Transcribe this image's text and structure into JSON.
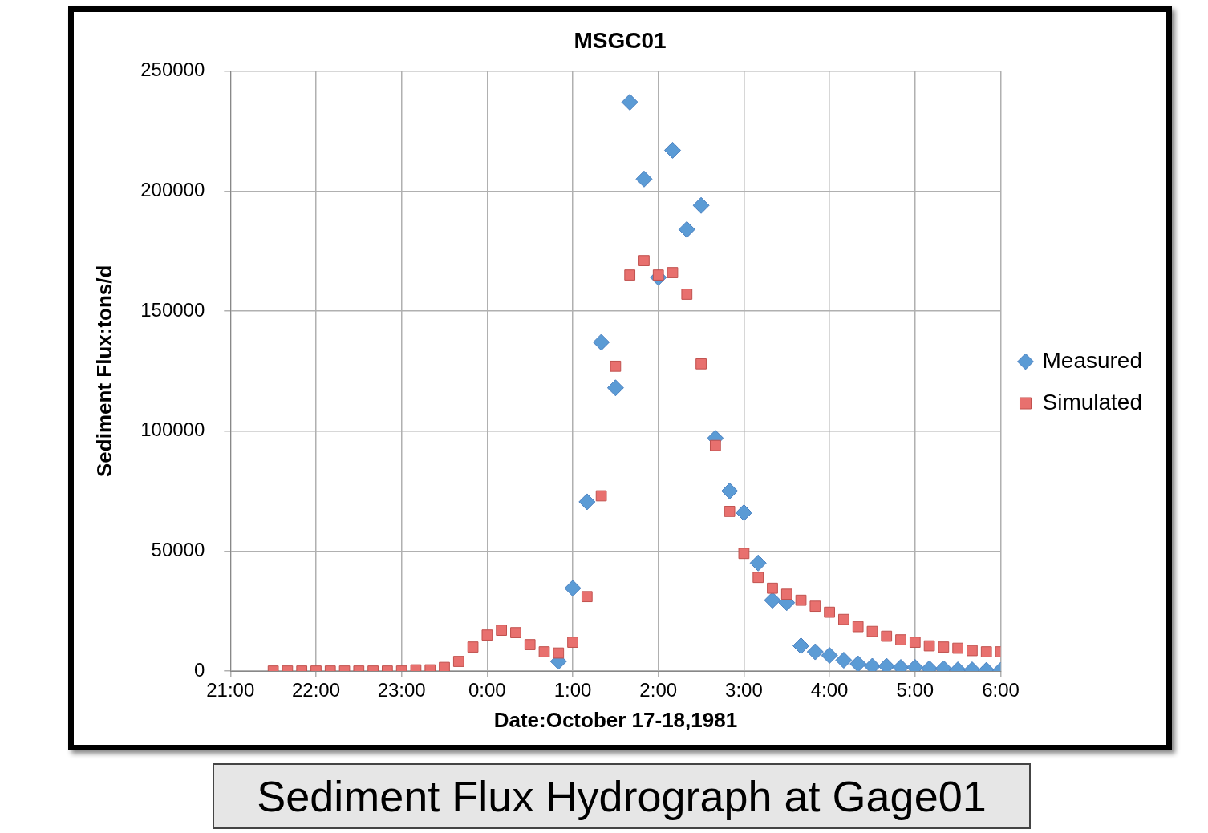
{
  "chart_data": {
    "type": "scatter",
    "title": "MSGC01",
    "xlabel": "Date:October 17-18,1981",
    "ylabel": "Sediment Flux:tons/d",
    "annotations": [
      "Sediment Flux Hydrograph at Gage01"
    ],
    "x": [
      "1981-10-17T21:30",
      "1981-10-17T21:40",
      "1981-10-17T21:50",
      "1981-10-17T22:00",
      "1981-10-17T22:10",
      "1981-10-17T22:20",
      "1981-10-17T22:30",
      "1981-10-17T22:40",
      "1981-10-17T22:50",
      "1981-10-17T23:00",
      "1981-10-17T23:10",
      "1981-10-17T23:20",
      "1981-10-17T23:30",
      "1981-10-17T23:40",
      "1981-10-17T23:50",
      "1981-10-18T00:00",
      "1981-10-18T00:10",
      "1981-10-18T00:20",
      "1981-10-18T00:30",
      "1981-10-18T00:40",
      "1981-10-18T00:50",
      "1981-10-18T01:00",
      "1981-10-18T01:10",
      "1981-10-18T01:20",
      "1981-10-18T01:30",
      "1981-10-18T01:40",
      "1981-10-18T01:50",
      "1981-10-18T02:00",
      "1981-10-18T02:10",
      "1981-10-18T02:20",
      "1981-10-18T02:30",
      "1981-10-18T02:40",
      "1981-10-18T02:50",
      "1981-10-18T03:00",
      "1981-10-18T03:10",
      "1981-10-18T03:20",
      "1981-10-18T03:30",
      "1981-10-18T03:40",
      "1981-10-18T03:50",
      "1981-10-18T04:00",
      "1981-10-18T04:10",
      "1981-10-18T04:20",
      "1981-10-18T04:30",
      "1981-10-18T04:40",
      "1981-10-18T04:50",
      "1981-10-18T05:00",
      "1981-10-18T05:10",
      "1981-10-18T05:20",
      "1981-10-18T05:30",
      "1981-10-18T05:40",
      "1981-10-18T05:50",
      "1981-10-18T06:00"
    ],
    "series": [
      {
        "name": "Measured",
        "color": "#5b9bd5",
        "marker": "diamond",
        "values": [
          null,
          null,
          null,
          null,
          null,
          null,
          null,
          null,
          null,
          null,
          null,
          null,
          null,
          null,
          null,
          null,
          null,
          null,
          null,
          null,
          4000,
          34500,
          70500,
          137000,
          118000,
          237000,
          205000,
          164000,
          217000,
          184000,
          194000,
          97000,
          75000,
          66000,
          45000,
          29500,
          28500,
          10500,
          8000,
          6500,
          4500,
          3000,
          2000,
          2000,
          1500,
          1500,
          1000,
          1000,
          500,
          500,
          300,
          300
        ]
      },
      {
        "name": "Simulated",
        "color": "#e8706e",
        "marker": "square",
        "values": [
          0,
          0,
          0,
          0,
          0,
          0,
          0,
          0,
          0,
          0,
          500,
          500,
          1500,
          4000,
          10000,
          15000,
          17000,
          16000,
          11000,
          8000,
          7500,
          12000,
          31000,
          73000,
          127000,
          165000,
          171000,
          165000,
          166000,
          157000,
          128000,
          94000,
          66500,
          49000,
          39000,
          34500,
          32000,
          29500,
          27000,
          24500,
          21500,
          18500,
          16500,
          14500,
          13000,
          12000,
          10500,
          10000,
          9500,
          8500,
          8000,
          8000
        ]
      }
    ],
    "xlim": [
      "1981-10-17T21:00",
      "1981-10-18T06:00"
    ],
    "xticks": [
      {
        "value": "1981-10-17T21:00",
        "label": "21:00"
      },
      {
        "value": "1981-10-17T22:00",
        "label": "22:00"
      },
      {
        "value": "1981-10-17T23:00",
        "label": "23:00"
      },
      {
        "value": "1981-10-18T00:00",
        "label": "0:00"
      },
      {
        "value": "1981-10-18T01:00",
        "label": "1:00"
      },
      {
        "value": "1981-10-18T02:00",
        "label": "2:00"
      },
      {
        "value": "1981-10-18T03:00",
        "label": "3:00"
      },
      {
        "value": "1981-10-18T04:00",
        "label": "4:00"
      },
      {
        "value": "1981-10-18T05:00",
        "label": "5:00"
      },
      {
        "value": "1981-10-18T06:00",
        "label": "6:00"
      }
    ],
    "ylim": [
      0,
      250000
    ],
    "yticks": [
      0,
      50000,
      100000,
      150000,
      200000,
      250000
    ],
    "grid": true,
    "legend": "right"
  }
}
